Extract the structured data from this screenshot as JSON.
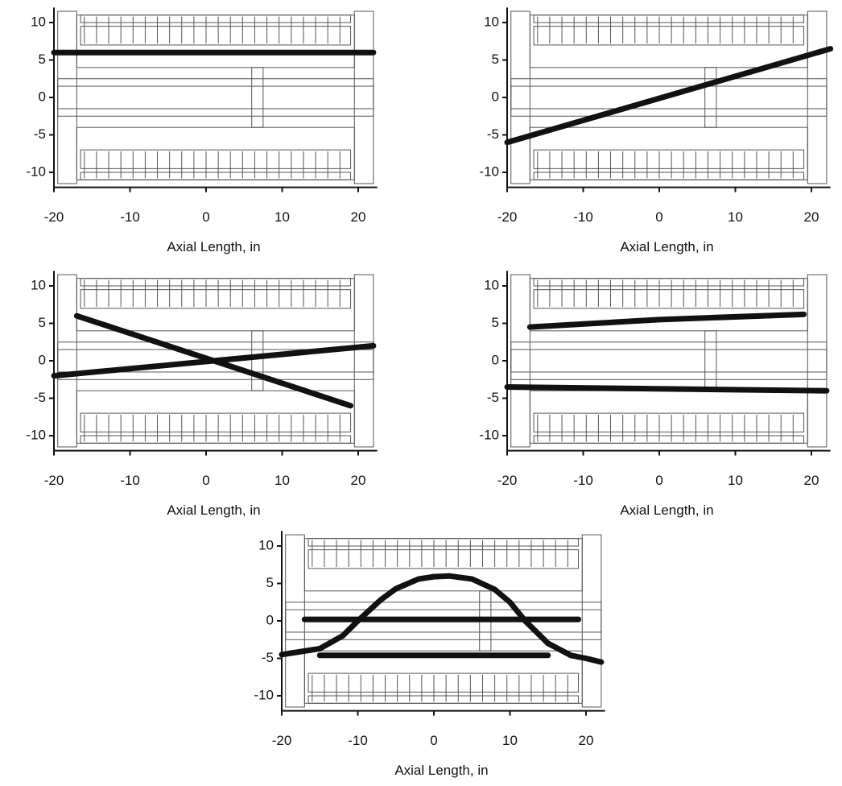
{
  "chart_data": [
    {
      "type": "line",
      "x_label": "Axial Length, in",
      "xlim": [
        -20,
        22.5
      ],
      "ylim": [
        -12,
        12
      ],
      "xticks": [
        -20,
        -10,
        0,
        10,
        20
      ],
      "yticks": [
        -10,
        -5,
        0,
        5,
        10
      ],
      "series": [
        {
          "color": "#111111",
          "x": [
            -20,
            22
          ],
          "values": [
            6,
            6
          ]
        }
      ]
    },
    {
      "type": "line",
      "x_label": "Axial Length, in",
      "xlim": [
        -20,
        22.5
      ],
      "ylim": [
        -12,
        12
      ],
      "xticks": [
        -20,
        -10,
        0,
        10,
        20
      ],
      "yticks": [
        -10,
        -5,
        0,
        5,
        10
      ],
      "series": [
        {
          "color": "#111111",
          "x": [
            -20,
            22.5
          ],
          "values": [
            -6,
            6.5
          ]
        }
      ]
    },
    {
      "type": "line",
      "x_label": "Axial Length, in",
      "xlim": [
        -20,
        22.5
      ],
      "ylim": [
        -12,
        12
      ],
      "xticks": [
        -20,
        -10,
        0,
        10,
        20
      ],
      "yticks": [
        -10,
        -5,
        0,
        5,
        10
      ],
      "series": [
        {
          "color": "#111111",
          "x": [
            -17,
            19
          ],
          "values": [
            6,
            -6
          ]
        },
        {
          "color": "#111111",
          "x": [
            -20,
            22
          ],
          "values": [
            -2,
            2
          ]
        }
      ]
    },
    {
      "type": "line",
      "x_label": "Axial Length, in",
      "xlim": [
        -20,
        22.5
      ],
      "ylim": [
        -12,
        12
      ],
      "xticks": [
        -20,
        -10,
        0,
        10,
        20
      ],
      "yticks": [
        -10,
        -5,
        0,
        5,
        10
      ],
      "series": [
        {
          "color": "#111111",
          "x": [
            -17,
            0,
            19
          ],
          "values": [
            4.5,
            5.5,
            6.2
          ]
        },
        {
          "color": "#111111",
          "x": [
            -20,
            22
          ],
          "values": [
            -3.5,
            -4
          ]
        }
      ]
    },
    {
      "type": "line",
      "x_label": "Axial Length, in",
      "xlim": [
        -20,
        22.5
      ],
      "ylim": [
        -12,
        12
      ],
      "xticks": [
        -20,
        -10,
        0,
        10,
        20
      ],
      "yticks": [
        -10,
        -5,
        0,
        5,
        10
      ],
      "series": [
        {
          "color": "#111111",
          "x": [
            -20,
            -15,
            -12,
            -10,
            -7,
            -5,
            -2,
            0,
            2,
            5,
            8,
            10,
            12,
            15,
            18,
            20,
            22
          ],
          "values": [
            -4.5,
            -3.7,
            -2,
            0,
            2.8,
            4.3,
            5.6,
            5.9,
            6,
            5.6,
            4.2,
            2.5,
            0,
            -3,
            -4.6,
            -5,
            -5.5
          ]
        },
        {
          "color": "#111111",
          "x": [
            -17,
            19
          ],
          "values": [
            0.2,
            0.2
          ]
        },
        {
          "color": "#111111",
          "x": [
            -15,
            15
          ],
          "values": [
            -4.6,
            -4.6
          ]
        }
      ]
    }
  ]
}
